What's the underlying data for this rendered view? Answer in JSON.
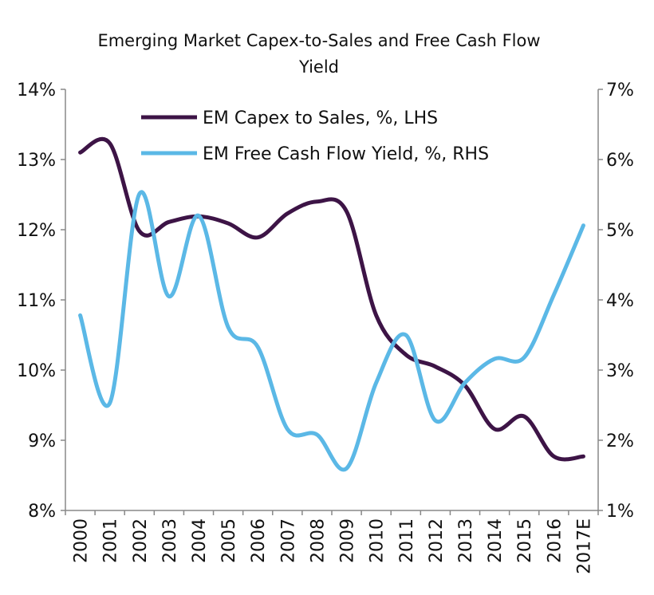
{
  "chart_data": {
    "type": "line",
    "title": "Emerging Market Capex-to-Sales and Free Cash Flow Yield",
    "categories": [
      "2000",
      "2001",
      "2002",
      "2003",
      "2004",
      "2005",
      "2006",
      "2007",
      "2008",
      "2009",
      "2010",
      "2011",
      "2012",
      "2013",
      "2014",
      "2015",
      "2016",
      "2017E"
    ],
    "y_left": {
      "min": 8,
      "max": 14,
      "ticks": [
        "8%",
        "9%",
        "10%",
        "11%",
        "12%",
        "13%",
        "14%"
      ]
    },
    "y_right": {
      "min": 1,
      "max": 7,
      "ticks": [
        "1%",
        "2%",
        "3%",
        "4%",
        "5%",
        "6%",
        "7%"
      ]
    },
    "grid": false,
    "legend_position": "top-center",
    "series": [
      {
        "name": "EM Capex to Sales, %, LHS",
        "axis": "left",
        "color": "#3d1446",
        "values": [
          13.1,
          13.23,
          11.98,
          12.11,
          12.19,
          12.09,
          11.89,
          12.23,
          12.4,
          12.26,
          10.78,
          10.22,
          10.05,
          9.78,
          9.16,
          9.34,
          8.77,
          8.77
        ]
      },
      {
        "name": "EM Free Cash Flow Yield, %, RHS",
        "axis": "right",
        "color": "#5bb8e6",
        "values": [
          3.78,
          2.53,
          5.51,
          4.05,
          5.2,
          3.61,
          3.33,
          2.16,
          2.08,
          1.6,
          2.82,
          3.5,
          2.28,
          2.82,
          3.16,
          3.18,
          4.07,
          5.06
        ]
      }
    ]
  }
}
